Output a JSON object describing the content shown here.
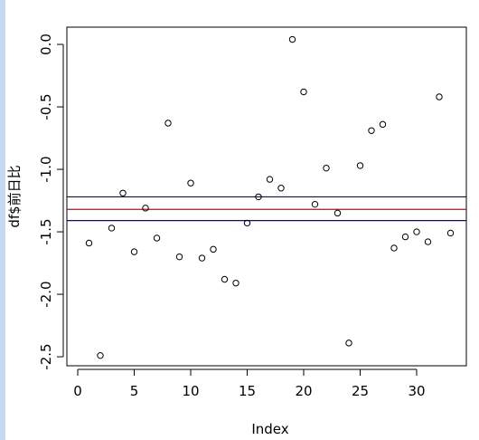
{
  "chart_data": {
    "type": "scatter",
    "xlabel": "Index",
    "ylabel": "df$前日比",
    "x": [
      1,
      2,
      3,
      4,
      5,
      6,
      7,
      8,
      9,
      10,
      11,
      12,
      13,
      14,
      15,
      16,
      17,
      18,
      19,
      20,
      21,
      22,
      23,
      24,
      25,
      26,
      27,
      28,
      29,
      30,
      31,
      32,
      33
    ],
    "values": [
      -1.59,
      -2.49,
      -1.47,
      -1.19,
      -1.66,
      -1.31,
      -1.55,
      -0.63,
      -1.7,
      -1.11,
      -1.71,
      -1.64,
      -1.88,
      -1.91,
      -1.43,
      -1.22,
      -1.08,
      -1.15,
      0.04,
      -0.38,
      -1.28,
      -0.99,
      -1.35,
      -2.39,
      -0.97,
      -0.69,
      -0.64,
      -1.63,
      -1.54,
      -1.5,
      -1.58,
      -0.42,
      -1.51
    ],
    "color": "#000000",
    "xlim": [
      -0.96,
      34.4
    ],
    "xticks": [
      0,
      5,
      10,
      15,
      20,
      25,
      30
    ],
    "ylim": [
      -2.572,
      0.138
    ],
    "yticks": [
      {
        "value": 0,
        "label": "0.0"
      },
      -0.5,
      {
        "value": -1,
        "label": "-1.0"
      },
      -1.5,
      {
        "value": -2,
        "label": "-2.0"
      },
      -2.5
    ],
    "hlines": [
      {
        "value": -1.22,
        "color": "#0000cc"
      },
      {
        "value": -1.32,
        "color": "#dd0000"
      },
      {
        "value": -1.41,
        "color": "#0000cc"
      }
    ]
  }
}
